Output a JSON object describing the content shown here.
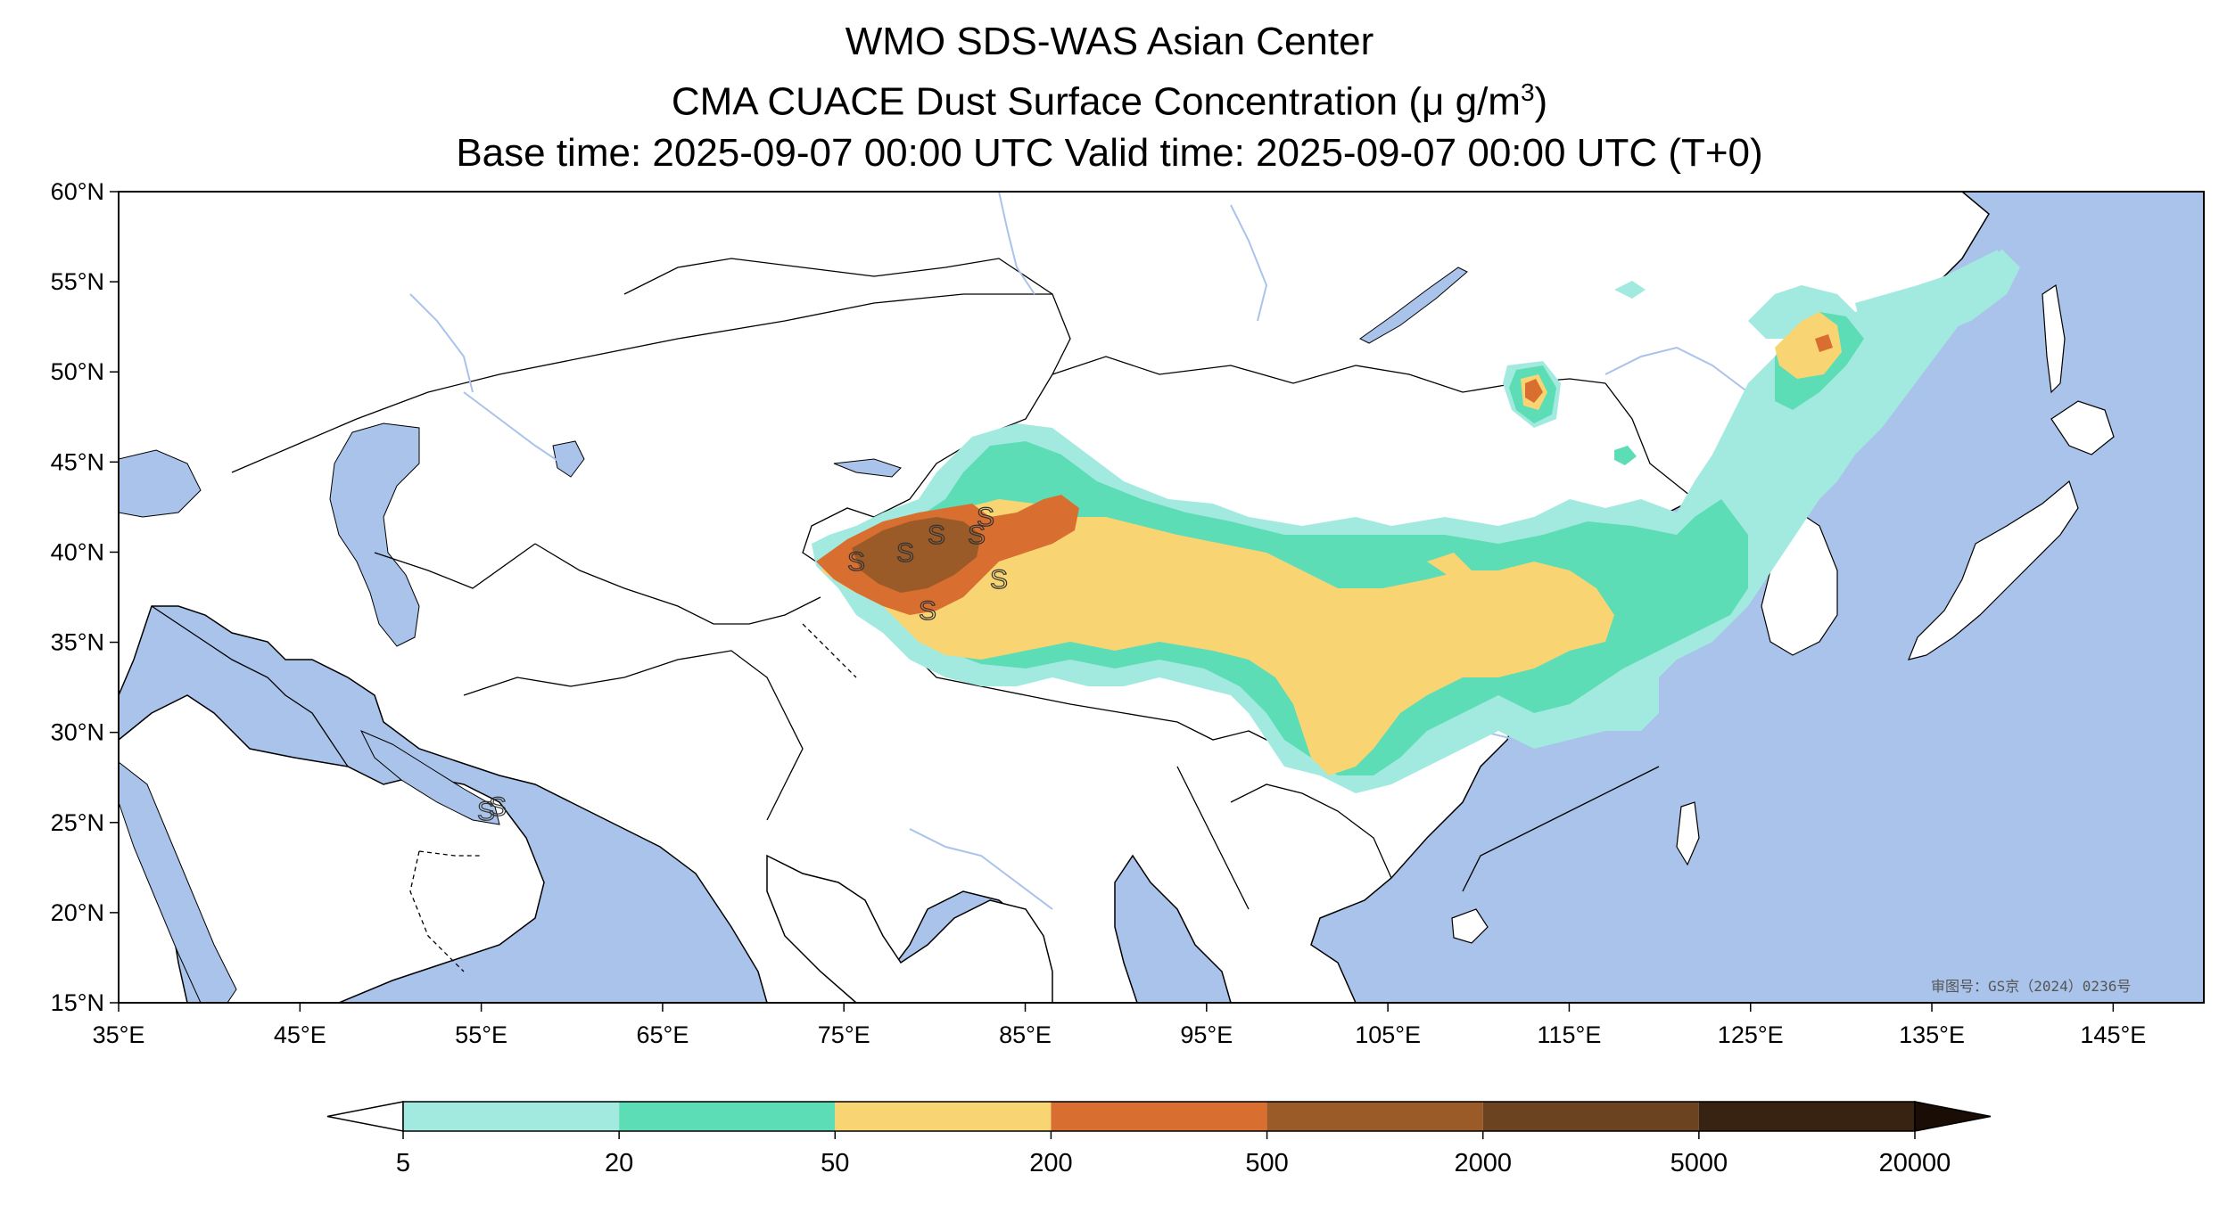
{
  "title": {
    "line1": "WMO SDS-WAS Asian Center",
    "line2_prefix": "CMA CUACE Dust Surface Concentration (",
    "line2_unit": "μ g/m",
    "line2_sup": "3",
    "line2_suffix": ")",
    "line3": "Base time: 2025-09-07 00:00 UTC Valid time: 2025-09-07 00:00 UTC (T+0)"
  },
  "map": {
    "lon_range": [
      35,
      150
    ],
    "lat_range": [
      15,
      60
    ],
    "lat_ticks": [
      "60°N",
      "55°N",
      "50°N",
      "45°N",
      "40°N",
      "35°N",
      "30°N",
      "25°N",
      "20°N",
      "15°N"
    ],
    "lon_ticks": [
      "35°E",
      "45°E",
      "55°E",
      "65°E",
      "75°E",
      "85°E",
      "95°E",
      "105°E",
      "115°E",
      "125°E",
      "135°E",
      "145°E"
    ],
    "land_color": "#ffffff",
    "water_color": "#a9c3ea",
    "approval_text": "审图号：GS京（2024）0236号"
  },
  "colorbar": {
    "levels": [
      "5",
      "20",
      "50",
      "200",
      "500",
      "2000",
      "5000",
      "20000"
    ],
    "colors": [
      "#a2eadf",
      "#5dddb5",
      "#f8d572",
      "#d86f30",
      "#9b5b28",
      "#6c4320",
      "#382212",
      "#1a0d05"
    ]
  }
}
